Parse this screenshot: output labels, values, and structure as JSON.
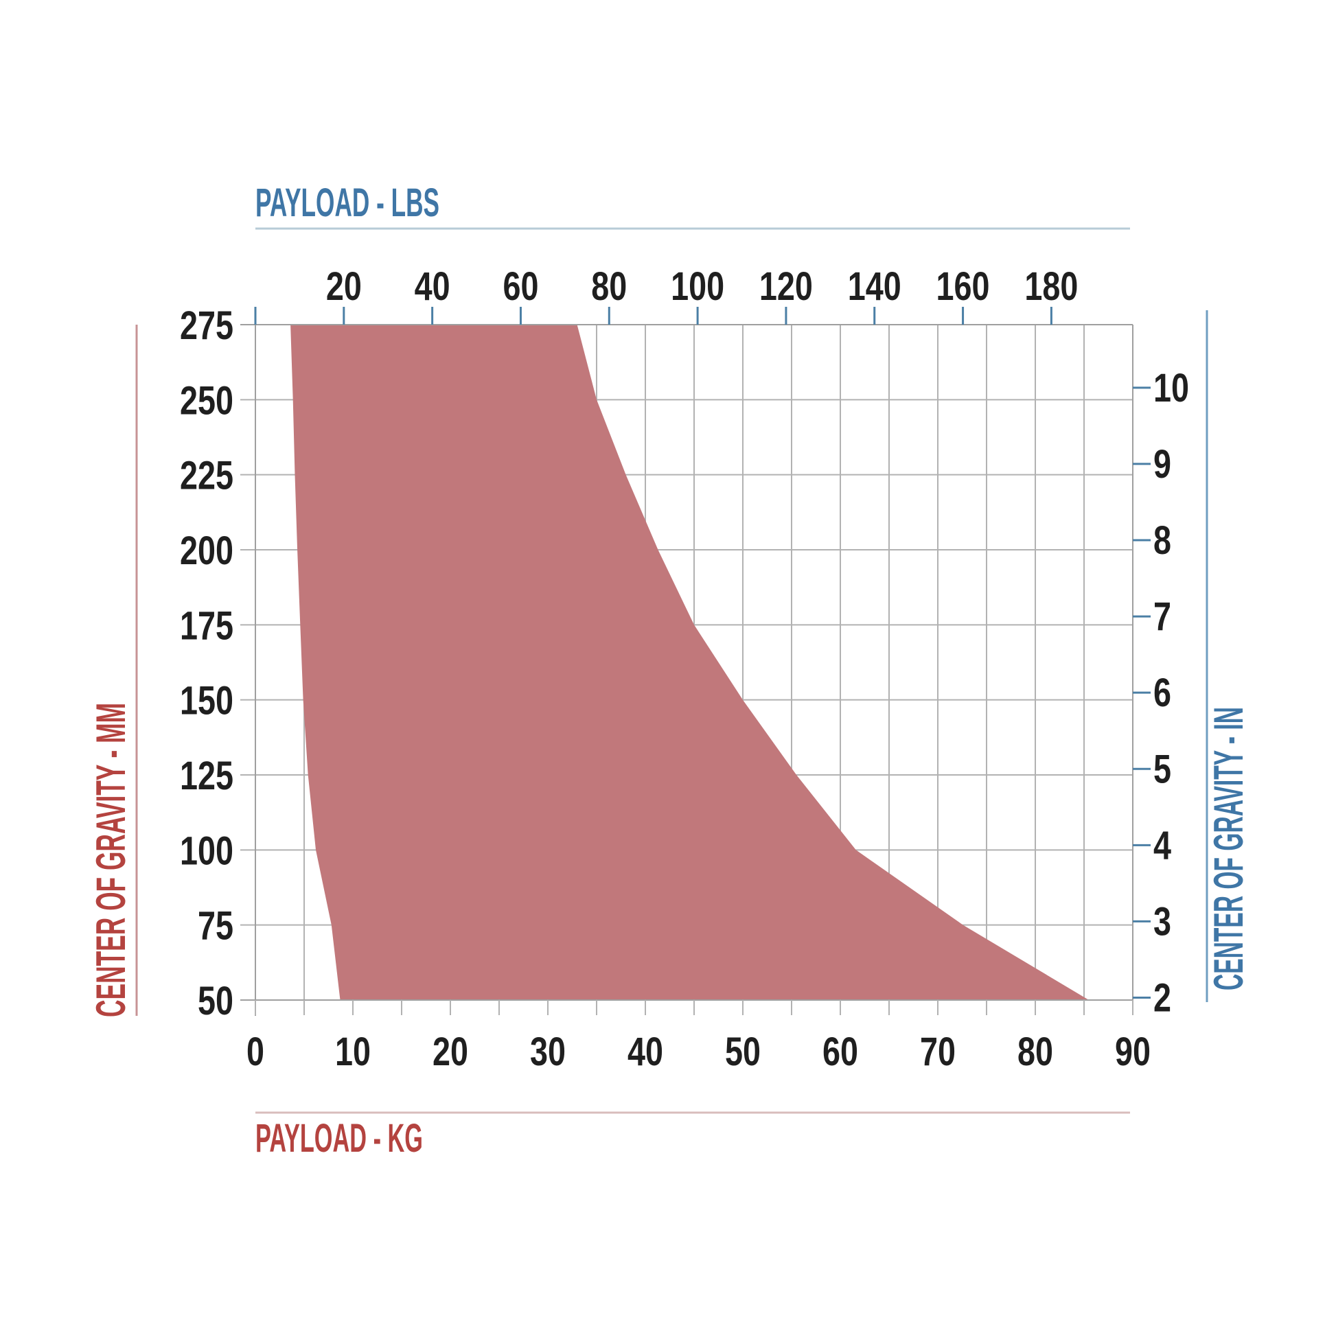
{
  "chart_data": {
    "type": "area",
    "description": "Payload vs center-of-gravity allowable envelope",
    "top_axis": {
      "title": "PAYLOAD - LBS",
      "tick_labels": [
        20,
        40,
        60,
        80,
        100,
        120,
        140,
        160,
        180
      ],
      "tick_step_lbs": 20,
      "range_lbs": [
        0,
        198.4
      ]
    },
    "bottom_axis": {
      "title": "PAYLOAD - KG",
      "tick_labels": [
        0,
        10,
        20,
        30,
        40,
        50,
        60,
        70,
        80,
        90
      ],
      "minor_step_kg": 5,
      "range_kg": [
        0,
        90
      ]
    },
    "left_axis": {
      "title": "CENTER OF GRAVITY - MM",
      "tick_labels": [
        275,
        250,
        225,
        200,
        175,
        150,
        125,
        100,
        75,
        50
      ],
      "step_mm": 25,
      "range_mm": [
        50,
        275
      ]
    },
    "right_axis": {
      "title": "CENTER OF GRAVITY - IN",
      "tick_labels": [
        10,
        9,
        8,
        7,
        6,
        5,
        4,
        3,
        2
      ],
      "step_in": 1
    },
    "envelope": [
      {
        "cg_mm": 275,
        "kg_min": 3.6,
        "kg_max": 33.0
      },
      {
        "cg_mm": 250,
        "kg_min": 3.85,
        "kg_max": 35.0
      },
      {
        "cg_mm": 225,
        "kg_min": 4.05,
        "kg_max": 38.0
      },
      {
        "cg_mm": 200,
        "kg_min": 4.3,
        "kg_max": 41.3
      },
      {
        "cg_mm": 175,
        "kg_min": 4.6,
        "kg_max": 45.0
      },
      {
        "cg_mm": 150,
        "kg_min": 4.9,
        "kg_max": 50.0
      },
      {
        "cg_mm": 125,
        "kg_min": 5.4,
        "kg_max": 55.5
      },
      {
        "cg_mm": 100,
        "kg_min": 6.2,
        "kg_max": 61.6
      },
      {
        "cg_mm": 75,
        "kg_min": 7.8,
        "kg_max": 72.6
      },
      {
        "cg_mm": 50,
        "kg_min": 8.7,
        "kg_max": 85.5
      }
    ],
    "grid": {
      "visible": true,
      "vertical_every_kg": 5,
      "horizontal_every_mm": 25
    },
    "legend": {
      "visible": false
    },
    "colors": {
      "region_fill": "#c1787b",
      "blue_text": "#3f76a6",
      "blue_tick": "#4b7fa5",
      "pale_blue_line": "#b7cbd7",
      "red_text": "#b4433f",
      "pale_red_line": "#d9bdbc",
      "red_axis_line": "#c79395",
      "blue_axis_line": "#6f9ec0",
      "grid_line": "#b2b2b2",
      "border_line": "#9f9f9f",
      "number_label": "#1f1f1f",
      "background": "#ffffff"
    }
  }
}
